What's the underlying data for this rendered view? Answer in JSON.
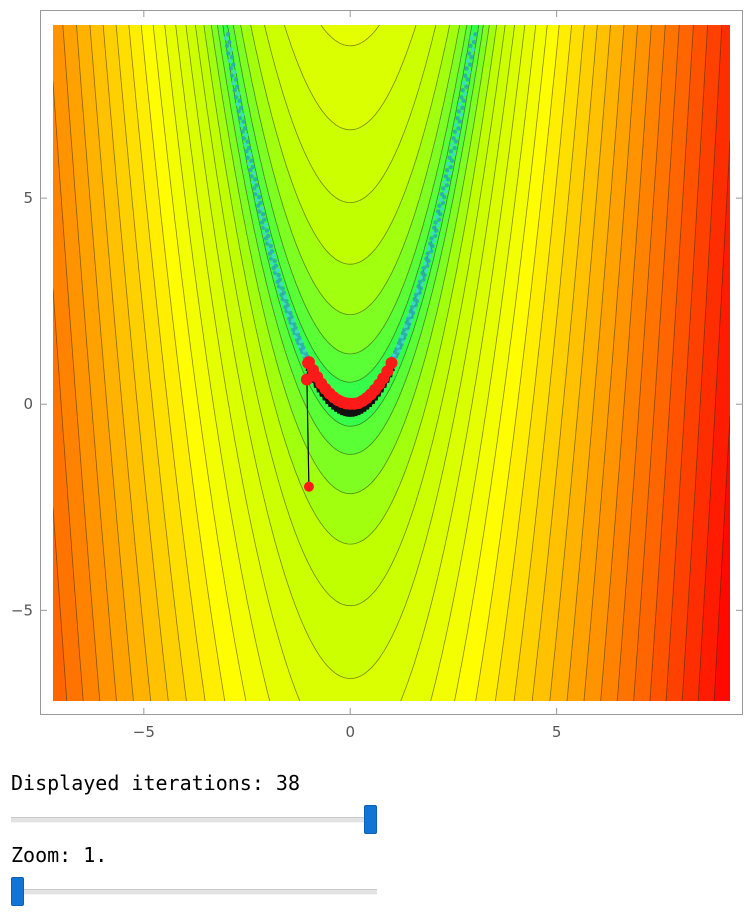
{
  "chart_data": {
    "type": "heatmap",
    "title": "",
    "xlabel": "",
    "ylabel": "",
    "xlim": [
      -7.2,
      9.2
    ],
    "ylim": [
      -7.2,
      9.2
    ],
    "x_ticks": [
      {
        "value": -5,
        "label": "−5"
      },
      {
        "value": 0,
        "label": "0"
      },
      {
        "value": 5,
        "label": "5"
      }
    ],
    "y_ticks": [
      {
        "value": 5,
        "label": "5"
      },
      {
        "value": 0,
        "label": "0"
      },
      {
        "value": -5,
        "label": "−5"
      }
    ],
    "field": "rosenbrock f(x,y) = (1-x)^2 + 100(y-x^2)^2, filled contour plot",
    "colormap": [
      "#00ff66",
      "#bbff00",
      "#ffff00",
      "#ffb000",
      "#ff6000",
      "#ff0000"
    ],
    "minimum_point": [
      1,
      1
    ],
    "start_point": [
      -1,
      -2
    ],
    "path_points": [
      [
        -1,
        -2
      ],
      [
        -1.05,
        0.6
      ],
      [
        -1.02,
        1.0
      ],
      [
        -1.0,
        1.02
      ],
      [
        -0.9,
        0.83
      ],
      [
        -0.8,
        0.66
      ],
      [
        -0.7,
        0.5
      ],
      [
        -0.6,
        0.37
      ],
      [
        -0.5,
        0.26
      ],
      [
        -0.4,
        0.17
      ],
      [
        -0.3,
        0.1
      ],
      [
        -0.2,
        0.05
      ],
      [
        -0.1,
        0.02
      ],
      [
        0.0,
        0.01
      ],
      [
        0.1,
        0.01
      ],
      [
        0.2,
        0.03
      ],
      [
        0.3,
        0.08
      ],
      [
        0.4,
        0.15
      ],
      [
        0.5,
        0.24
      ],
      [
        0.6,
        0.35
      ],
      [
        0.7,
        0.48
      ],
      [
        0.8,
        0.63
      ],
      [
        0.9,
        0.8
      ],
      [
        1.0,
        1.0
      ]
    ],
    "point_color": "#ff1a1a"
  },
  "controls": {
    "iterations_label": "Displayed iterations: 38",
    "iterations_value": 1.0,
    "zoom_label": "Zoom: 1.",
    "zoom_value": 0.0
  },
  "colors": {
    "slider_thumb": "#1175d8",
    "frame": "#999999"
  }
}
